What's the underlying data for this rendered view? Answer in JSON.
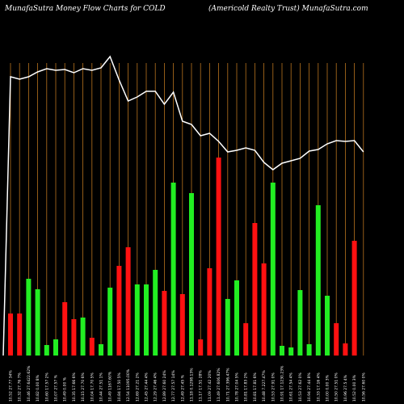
{
  "header": {
    "title_left": "MunafaSutra  Money Flow  Charts for COLD",
    "title_right": "(Americold Realty Trust) MunafaSutra.com"
  },
  "chart_data": {
    "type": "bar",
    "title": "MunafaSutra  Money Flow  Charts for COLD",
    "subtitle": "(Americold Realty Trust) MunafaSutra.com",
    "colors": {
      "up": "#22ee22",
      "down": "#ff1111",
      "grid": "#b8731e",
      "line": "#ffffff",
      "background": "#000000"
    },
    "categories": [
      "10.52 27.77 34%",
      "10.32 27.76 7%",
      "10.46 27.6422.62%",
      "10.82 0.00 8%",
      "10.60 17.57 2%",
      "10.07 27.57 %",
      "10.49 0.00 %",
      "10.35 17.66 6%",
      "10.15 27.70 6%",
      "10.04 17.70 5%",
      "10.44 27.51 1%",
      "10.49 1167.60%",
      "10.84 17.50 5%",
      "12.54 11095.00%",
      "12.69 27.21 2%",
      "12.45 27.44 4%",
      "12.29 27.46 4%",
      "12.89 27.60 24%",
      "12.77 27.57 14%",
      "12.49 27.45 %",
      "11.18 0.1298.13%",
      "11.17 17.51 28%",
      "11.09 27.42 20%",
      "11.49 27.606.82%",
      "10.71 27.396.47%",
      "10.78 27.04 5%",
      "10.81 17.83 2%",
      "10.81 17.81 6%",
      "10.48 7.227.47%",
      "10.53 27.91 0%",
      "10.91 17.1230.23%",
      "10.61 27.54 4%",
      "10.53 27.62 0%",
      "10.94 27.44 8%",
      "10.33 17.16 4%",
      "10.00 0.00 3%",
      "10.50 27.51 0%",
      "10.96 27.5 4%",
      "10.52 0.00 3%",
      "10.56 27.60 0%"
    ],
    "values": [
      52,
      52,
      95,
      82,
      13,
      20,
      66,
      45,
      47,
      22,
      14,
      84,
      111,
      134,
      88,
      88,
      106,
      80,
      214,
      76,
      201,
      20,
      108,
      245,
      70,
      93,
      40,
      164,
      114,
      214,
      12,
      10,
      81,
      14,
      186,
      74,
      40,
      15,
      142,
      0
    ],
    "directions": [
      "down",
      "down",
      "up",
      "up",
      "up",
      "up",
      "down",
      "down",
      "up",
      "down",
      "up",
      "up",
      "down",
      "down",
      "up",
      "up",
      "up",
      "down",
      "up",
      "down",
      "up",
      "down",
      "down",
      "down",
      "up",
      "up",
      "down",
      "down",
      "down",
      "up",
      "up",
      "up",
      "up",
      "up",
      "up",
      "up",
      "down",
      "down",
      "down",
      "down"
    ],
    "price_line": [
      345,
      342,
      345,
      351,
      355,
      353,
      354,
      350,
      355,
      353,
      356,
      370,
      341,
      315,
      320,
      327,
      327,
      311,
      326,
      290,
      286,
      272,
      275,
      265,
      252,
      254,
      257,
      254,
      239,
      230,
      238,
      241,
      244,
      253,
      255,
      262,
      266,
      265,
      266,
      252
    ]
  }
}
